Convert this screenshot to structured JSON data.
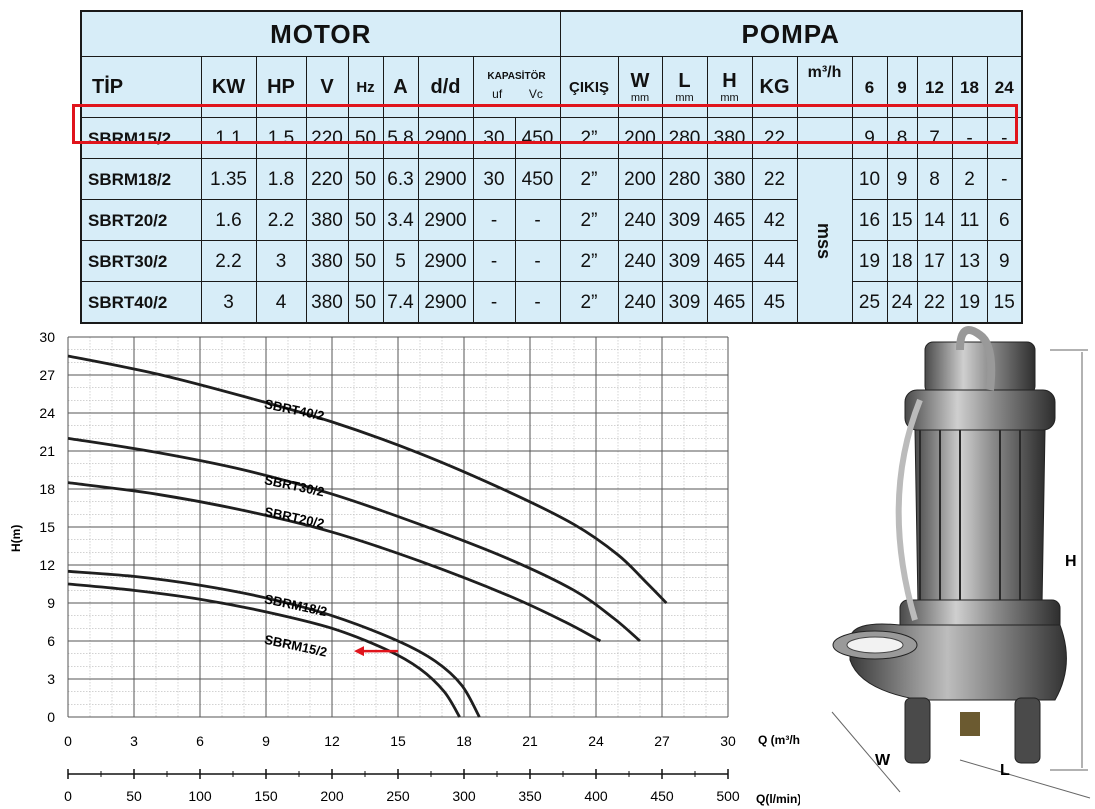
{
  "table": {
    "motor_title": "MOTOR",
    "pompa_title": "POMPA",
    "headers": {
      "tip": "TİP",
      "kw": "KW",
      "hp": "HP",
      "v": "V",
      "hz": "Hz",
      "a": "A",
      "dd": "d/d",
      "kapasitor": "KAPASİTÖR",
      "uf": "uf",
      "vc": "Vc",
      "cikis": "ÇIKIŞ",
      "w": "W",
      "l": "L",
      "h": "H",
      "mm": "mm",
      "kg": "KG",
      "m3h": "m³/h",
      "q6": "6",
      "q9": "9",
      "q12": "12",
      "q18": "18",
      "q24": "24"
    },
    "mss_label": "mss",
    "rows": [
      {
        "tip": "SBRM15/2",
        "kw": "1.1",
        "hp": "1.5",
        "v": "220",
        "hz": "50",
        "a": "5.8",
        "dd": "2900",
        "uf": "30",
        "vc": "450",
        "cikis": "2”",
        "w": "200",
        "l": "280",
        "h": "380",
        "kg": "22",
        "h6": "9",
        "h9": "8",
        "h12": "7",
        "h18": "-",
        "h24": "-"
      },
      {
        "tip": "SBRM18/2",
        "kw": "1.35",
        "hp": "1.8",
        "v": "220",
        "hz": "50",
        "a": "6.3",
        "dd": "2900",
        "uf": "30",
        "vc": "450",
        "cikis": "2”",
        "w": "200",
        "l": "280",
        "h": "380",
        "kg": "22",
        "h6": "10",
        "h9": "9",
        "h12": "8",
        "h18": "2",
        "h24": "-"
      },
      {
        "tip": "SBRT20/2",
        "kw": "1.6",
        "hp": "2.2",
        "v": "380",
        "hz": "50",
        "a": "3.4",
        "dd": "2900",
        "uf": "-",
        "vc": "-",
        "cikis": "2”",
        "w": "240",
        "l": "309",
        "h": "465",
        "kg": "42",
        "h6": "16",
        "h9": "15",
        "h12": "14",
        "h18": "11",
        "h24": "6"
      },
      {
        "tip": "SBRT30/2",
        "kw": "2.2",
        "hp": "3",
        "v": "380",
        "hz": "50",
        "a": "5",
        "dd": "2900",
        "uf": "-",
        "vc": "-",
        "cikis": "2”",
        "w": "240",
        "l": "309",
        "h": "465",
        "kg": "44",
        "h6": "19",
        "h9": "18",
        "h12": "17",
        "h18": "13",
        "h24": "9"
      },
      {
        "tip": "SBRT40/2",
        "kw": "3",
        "hp": "4",
        "v": "380",
        "hz": "50",
        "a": "7.4",
        "dd": "2900",
        "uf": "-",
        "vc": "-",
        "cikis": "2”",
        "w": "240",
        "l": "309",
        "h": "465",
        "kg": "45",
        "h6": "25",
        "h9": "24",
        "h12": "22",
        "h18": "19",
        "h24": "15"
      }
    ]
  },
  "chart_data": {
    "type": "line",
    "xlabel": "Q (m³/h)",
    "x2label": "Q(l/min)",
    "ylabel": "H(m)",
    "xlim": [
      0,
      30
    ],
    "ylim": [
      0,
      30
    ],
    "x_ticks": [
      0,
      3,
      6,
      9,
      12,
      15,
      18,
      21,
      24,
      27,
      30
    ],
    "y_ticks": [
      0,
      3,
      6,
      9,
      12,
      15,
      18,
      21,
      24,
      27,
      30
    ],
    "x2_ticks": [
      0,
      50,
      100,
      150,
      200,
      250,
      300,
      350,
      400,
      450,
      500
    ],
    "grid": true,
    "series": [
      {
        "name": "SBRT40/2",
        "points": [
          [
            0,
            28.5
          ],
          [
            4,
            27.1
          ],
          [
            8,
            25.3
          ],
          [
            12,
            23.3
          ],
          [
            16,
            20.8
          ],
          [
            20,
            17.8
          ],
          [
            23,
            15.2
          ],
          [
            25,
            12.8
          ],
          [
            26.3,
            10.6
          ],
          [
            27.2,
            9
          ]
        ]
      },
      {
        "name": "SBRT30/2",
        "points": [
          [
            0,
            22
          ],
          [
            4,
            20.9
          ],
          [
            8,
            19.5
          ],
          [
            12,
            17.6
          ],
          [
            16,
            15.2
          ],
          [
            20,
            12.5
          ],
          [
            23,
            10
          ],
          [
            24.8,
            7.8
          ],
          [
            26,
            6
          ]
        ]
      },
      {
        "name": "SBRT20/2",
        "points": [
          [
            0,
            18.5
          ],
          [
            4,
            17.6
          ],
          [
            8,
            16.3
          ],
          [
            12,
            14.6
          ],
          [
            16,
            12.3
          ],
          [
            20,
            9.6
          ],
          [
            22.6,
            7.5
          ],
          [
            24.2,
            6
          ]
        ]
      },
      {
        "name": "SBRM18/2",
        "points": [
          [
            0,
            11.5
          ],
          [
            3,
            11.1
          ],
          [
            6,
            10.4
          ],
          [
            9,
            9.4
          ],
          [
            12,
            8
          ],
          [
            15,
            6
          ],
          [
            16.7,
            4.4
          ],
          [
            17.9,
            2.5
          ],
          [
            18.7,
            0
          ]
        ]
      },
      {
        "name": "SBRM15/2",
        "points": [
          [
            0,
            10.5
          ],
          [
            3,
            10
          ],
          [
            6,
            9.3
          ],
          [
            9,
            8.3
          ],
          [
            12,
            7
          ],
          [
            14.5,
            5.3
          ],
          [
            16,
            3.8
          ],
          [
            17.1,
            2
          ],
          [
            17.8,
            0
          ]
        ]
      }
    ],
    "label_positions": [
      {
        "name": "SBRT40/2",
        "x": 8.9,
        "y": 24.4
      },
      {
        "name": "SBRT30/2",
        "x": 8.9,
        "y": 18.4
      },
      {
        "name": "SBRT20/2",
        "x": 8.9,
        "y": 15.9
      },
      {
        "name": "SBRM18/2",
        "x": 8.9,
        "y": 9
      },
      {
        "name": "SBRM15/2",
        "x": 8.9,
        "y": 5.8
      }
    ],
    "annotation": {
      "type": "arrow",
      "color": "#e0141c",
      "from": [
        15,
        5.2
      ],
      "to": [
        13,
        5.2
      ]
    },
    "line_color": "#1f1f1f"
  },
  "drawing": {
    "dim_h": "H",
    "dim_w": "W",
    "dim_l": "L"
  }
}
